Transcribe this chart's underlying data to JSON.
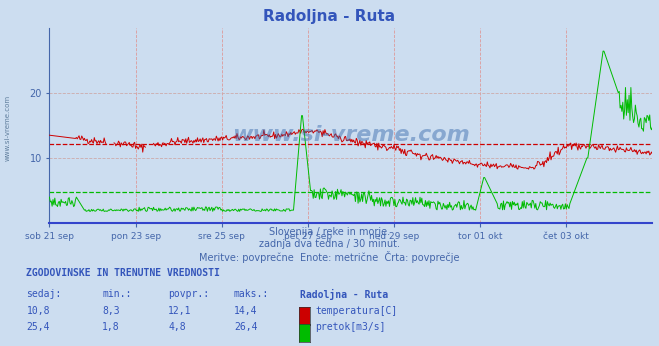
{
  "title": "Radoljna - Ruta",
  "background_color": "#ccddf0",
  "plot_bg_color": "#ccddf0",
  "fig_bg_color": "#ccddf0",
  "x_labels": [
    "sob 21 sep",
    "pon 23 sep",
    "sre 25 sep",
    "pet 27 sep",
    "ned 29 sep",
    "tor 01 okt",
    "čet 03 okt"
  ],
  "x_ticks": [
    0,
    96,
    192,
    288,
    384,
    480,
    576
  ],
  "total_points": 673,
  "ylim": [
    0,
    30
  ],
  "yticks": [
    10,
    20
  ],
  "temp_avg": 12.1,
  "flow_avg": 4.8,
  "temp_line_color": "#cc0000",
  "flow_line_color": "#00bb00",
  "avg_line_color_temp": "#cc0000",
  "avg_line_color_flow": "#00bb00",
  "grid_v_color": "#dd9999",
  "grid_h_color": "#ccaaaa",
  "axis_color": "#4466aa",
  "bottom_spine_color": "#3344cc",
  "watermark_color": "#3366aa",
  "subtitle1": "Slovenija / reke in morje.",
  "subtitle2": "zadnja dva tedna / 30 minut.",
  "subtitle3": "Meritve: povprečne  Enote: metrične  Črta: povprečje",
  "info_title": "ZGODOVINSKE IN TRENUTNE VREDNOSTI",
  "col_headers": [
    "sedaj:",
    "min.:",
    "povpr.:",
    "maks.:",
    "Radoljna - Ruta"
  ],
  "temp_row": [
    "10,8",
    "8,3",
    "12,1",
    "14,4"
  ],
  "flow_row": [
    "25,4",
    "1,8",
    "4,8",
    "26,4"
  ],
  "temp_label": "temperatura[C]",
  "flow_label": "pretok[m3/s]",
  "side_label": "www.si-vreme.com",
  "title_color": "#3355bb",
  "title_fontsize": 11,
  "info_color": "#3355bb",
  "text_color": "#4466aa"
}
